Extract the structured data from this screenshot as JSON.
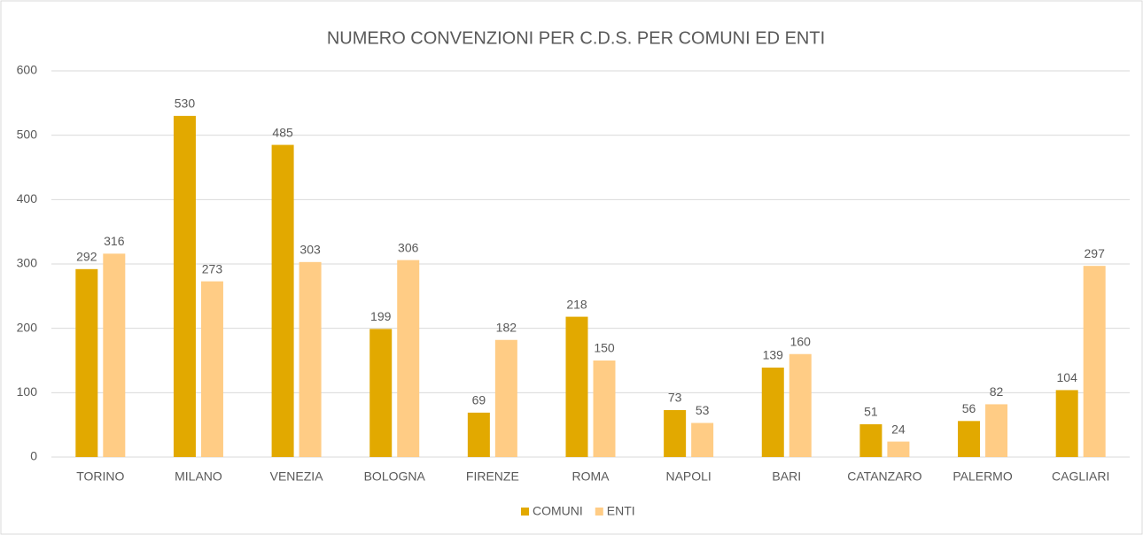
{
  "chart_data": {
    "type": "bar",
    "title": "NUMERO CONVENZIONI PER C.D.S. PER COMUNI ED ENTI",
    "categories": [
      "TORINO",
      "MILANO",
      "VENEZIA",
      "BOLOGNA",
      "FIRENZE",
      "ROMA",
      "NAPOLI",
      "BARI",
      "CATANZARO",
      "PALERMO",
      "CAGLIARI"
    ],
    "series": [
      {
        "name": "COMUNI",
        "color": "#e2a900",
        "values": [
          292,
          530,
          485,
          199,
          69,
          218,
          73,
          139,
          51,
          56,
          104
        ]
      },
      {
        "name": "ENTI",
        "color": "#ffcc85",
        "values": [
          316,
          273,
          303,
          306,
          182,
          150,
          53,
          160,
          24,
          82,
          297
        ]
      }
    ],
    "ylim": [
      0,
      600
    ],
    "yticks": [
      0,
      100,
      200,
      300,
      400,
      500,
      600
    ],
    "grid": true,
    "legend": "bottom"
  }
}
